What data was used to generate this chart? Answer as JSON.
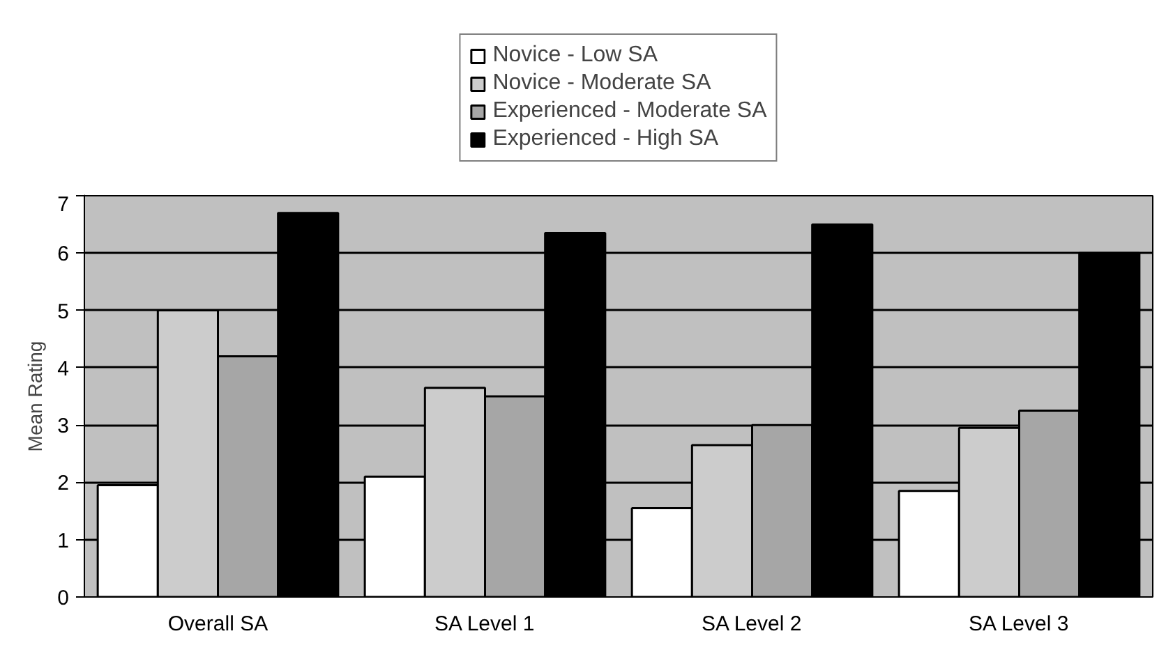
{
  "chart_data": {
    "type": "bar",
    "ylabel": "Mean Rating",
    "categories": [
      "Overall SA",
      "SA Level 1",
      "SA Level 2",
      "SA Level 3"
    ],
    "series": [
      {
        "name": "Novice - Low SA",
        "color": "#ffffff",
        "values": [
          1.95,
          2.1,
          1.55,
          1.85
        ]
      },
      {
        "name": "Novice - Moderate SA",
        "color": "#cccccc",
        "values": [
          5.0,
          3.65,
          2.65,
          2.95
        ]
      },
      {
        "name": "Experienced - Moderate SA",
        "color": "#a6a6a6",
        "values": [
          4.2,
          3.5,
          3.0,
          3.25
        ]
      },
      {
        "name": "Experienced - High SA",
        "color": "#000000",
        "values": [
          6.7,
          6.35,
          6.5,
          6.0
        ]
      }
    ],
    "ylim": [
      0,
      7
    ],
    "yticks": [
      0,
      1,
      2,
      3,
      4,
      5,
      6,
      7
    ],
    "grid": "y",
    "legend": "top"
  }
}
